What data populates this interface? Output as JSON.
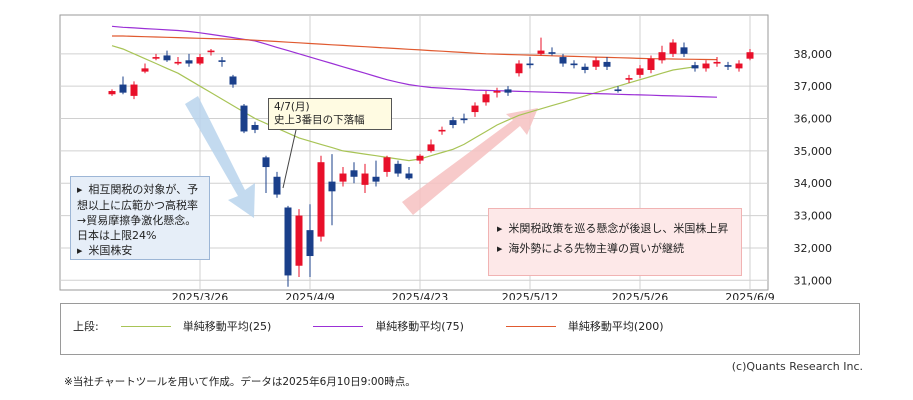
{
  "chart_data": {
    "type": "candlestick",
    "y_ticks": [
      "38,000",
      "37,000",
      "36,000",
      "35,000",
      "34,000",
      "33,000",
      "32,000",
      "31,000"
    ],
    "y_tick_values": [
      38000,
      37000,
      36000,
      35000,
      34000,
      33000,
      32000,
      31000
    ],
    "ylim": [
      30700,
      39200
    ],
    "x_labels": [
      "2025/3/26",
      "2025/4/9",
      "2025/4/23",
      "2025/5/12",
      "2025/5/26",
      "2025/6/9"
    ],
    "x_label_index": [
      8,
      18,
      28,
      38,
      48,
      58
    ],
    "n_days": 60,
    "grid": true,
    "colors": {
      "up": "#e8102a",
      "down": "#1a3f8a",
      "ma25": "#a8c456",
      "ma75": "#9b30d6",
      "ma200": "#e05a30"
    },
    "candles": [
      {
        "o": 36750,
        "c": 36850,
        "h": 36900,
        "l": 36700
      },
      {
        "o": 37050,
        "c": 36800,
        "h": 37300,
        "l": 36750
      },
      {
        "o": 36700,
        "c": 37050,
        "h": 37150,
        "l": 36600
      },
      {
        "o": 37450,
        "c": 37550,
        "h": 37700,
        "l": 37400
      },
      {
        "o": 37850,
        "c": 37900,
        "h": 38000,
        "l": 37800
      },
      {
        "o": 37950,
        "c": 37800,
        "h": 38100,
        "l": 37750
      },
      {
        "o": 37700,
        "c": 37750,
        "h": 37900,
        "l": 37650
      },
      {
        "o": 37800,
        "c": 37700,
        "h": 38000,
        "l": 37600
      },
      {
        "o": 37700,
        "c": 37900,
        "h": 38000,
        "l": 37650
      },
      {
        "o": 38050,
        "c": 38100,
        "h": 38150,
        "l": 37950
      },
      {
        "o": 37800,
        "c": 37750,
        "h": 37900,
        "l": 37600
      },
      {
        "o": 37300,
        "c": 37050,
        "h": 37350,
        "l": 36950
      },
      {
        "o": 36400,
        "c": 35600,
        "h": 36450,
        "l": 35550
      },
      {
        "o": 35800,
        "c": 35650,
        "h": 35900,
        "l": 35550
      },
      {
        "o": 34800,
        "c": 34500,
        "h": 34850,
        "l": 33700
      },
      {
        "o": 34200,
        "c": 33650,
        "h": 34350,
        "l": 33550
      },
      {
        "o": 33250,
        "c": 31150,
        "h": 33300,
        "l": 30800
      },
      {
        "o": 31450,
        "c": 33000,
        "h": 33200,
        "l": 31100
      },
      {
        "o": 32550,
        "c": 31750,
        "h": 33350,
        "l": 31100
      },
      {
        "o": 32350,
        "c": 34650,
        "h": 34850,
        "l": 32200
      },
      {
        "o": 34050,
        "c": 33750,
        "h": 34900,
        "l": 32700
      },
      {
        "o": 34050,
        "c": 34300,
        "h": 34500,
        "l": 33900
      },
      {
        "o": 34400,
        "c": 34200,
        "h": 34650,
        "l": 34000
      },
      {
        "o": 33950,
        "c": 34300,
        "h": 34600,
        "l": 33700
      },
      {
        "o": 34200,
        "c": 34050,
        "h": 34700,
        "l": 33900
      },
      {
        "o": 34350,
        "c": 34800,
        "h": 34850,
        "l": 34200
      },
      {
        "o": 34600,
        "c": 34300,
        "h": 34700,
        "l": 34200
      },
      {
        "o": 34300,
        "c": 34150,
        "h": 34500,
        "l": 34100
      },
      {
        "o": 34700,
        "c": 34850,
        "h": 34900,
        "l": 34600
      },
      {
        "o": 35000,
        "c": 35200,
        "h": 35350,
        "l": 34950
      },
      {
        "o": 35600,
        "c": 35650,
        "h": 35750,
        "l": 35500
      },
      {
        "o": 35950,
        "c": 35800,
        "h": 36050,
        "l": 35700
      },
      {
        "o": 36000,
        "c": 35950,
        "h": 36150,
        "l": 35850
      },
      {
        "o": 36200,
        "c": 36400,
        "h": 36500,
        "l": 36050
      },
      {
        "o": 36500,
        "c": 36750,
        "h": 36850,
        "l": 36400
      },
      {
        "o": 36800,
        "c": 36850,
        "h": 36950,
        "l": 36650
      },
      {
        "o": 36900,
        "c": 36800,
        "h": 37000,
        "l": 36700
      },
      {
        "o": 37400,
        "c": 37700,
        "h": 37800,
        "l": 37300
      },
      {
        "o": 37700,
        "c": 37650,
        "h": 37900,
        "l": 37550
      },
      {
        "o": 38000,
        "c": 38100,
        "h": 38500,
        "l": 37950
      },
      {
        "o": 38050,
        "c": 38000,
        "h": 38200,
        "l": 37950
      },
      {
        "o": 37900,
        "c": 37700,
        "h": 38000,
        "l": 37600
      },
      {
        "o": 37700,
        "c": 37650,
        "h": 37800,
        "l": 37550
      },
      {
        "o": 37600,
        "c": 37500,
        "h": 37700,
        "l": 37400
      },
      {
        "o": 37600,
        "c": 37800,
        "h": 37900,
        "l": 37500
      },
      {
        "o": 37750,
        "c": 37600,
        "h": 37900,
        "l": 37500
      },
      {
        "o": 36900,
        "c": 36850,
        "h": 37000,
        "l": 36800
      },
      {
        "o": 37200,
        "c": 37250,
        "h": 37350,
        "l": 37100
      },
      {
        "o": 37350,
        "c": 37550,
        "h": 37650,
        "l": 37250
      },
      {
        "o": 37500,
        "c": 37850,
        "h": 37950,
        "l": 37400
      },
      {
        "o": 37800,
        "c": 38050,
        "h": 38250,
        "l": 37700
      },
      {
        "o": 38000,
        "c": 38350,
        "h": 38450,
        "l": 37900
      },
      {
        "o": 38200,
        "c": 38000,
        "h": 38350,
        "l": 37900
      },
      {
        "o": 37650,
        "c": 37550,
        "h": 37750,
        "l": 37450
      },
      {
        "o": 37550,
        "c": 37700,
        "h": 37800,
        "l": 37450
      },
      {
        "o": 37700,
        "c": 37750,
        "h": 37900,
        "l": 37600
      },
      {
        "o": 37650,
        "c": 37600,
        "h": 37750,
        "l": 37500
      },
      {
        "o": 37550,
        "c": 37700,
        "h": 37800,
        "l": 37450
      },
      {
        "o": 37850,
        "c": 38050,
        "h": 38150,
        "l": 37800
      }
    ],
    "series": [
      {
        "name": "単純移動平均(25)",
        "values": [
          38250,
          38150,
          38000,
          37850,
          37700,
          37550,
          37400,
          37200,
          37000,
          36800,
          36600,
          36400,
          36200,
          36000,
          35850,
          35700,
          35550,
          35400,
          35300,
          35200,
          35100,
          35000,
          34950,
          34900,
          34850,
          34800,
          34750,
          34700,
          34750,
          34850,
          34950,
          35050,
          35200,
          35400,
          35600,
          35800,
          35950,
          36100,
          36200,
          36300,
          36400,
          36500,
          36600,
          36700,
          36800,
          36900,
          37000,
          37100,
          37200,
          37300,
          37400,
          37500,
          37550,
          37600
        ]
      },
      {
        "name": "単純移動平均(75)",
        "values": [
          38850,
          38820,
          38800,
          38780,
          38760,
          38740,
          38720,
          38690,
          38650,
          38600,
          38550,
          38500,
          38450,
          38400,
          38300,
          38200,
          38100,
          38000,
          37900,
          37800,
          37700,
          37600,
          37500,
          37400,
          37300,
          37200,
          37120,
          37050,
          37000,
          36960,
          36940,
          36920,
          36900,
          36880,
          36870,
          36860,
          36850,
          36840,
          36830,
          36820,
          36810,
          36800,
          36790,
          36780,
          36770,
          36760,
          36750,
          36740,
          36730,
          36720,
          36710,
          36700,
          36690,
          36680,
          36670,
          36660
        ]
      },
      {
        "name": "単純移動平均(200)",
        "values": [
          38550,
          38550,
          38540,
          38530,
          38520,
          38510,
          38500,
          38490,
          38480,
          38470,
          38460,
          38450,
          38440,
          38420,
          38400,
          38380,
          38360,
          38340,
          38320,
          38300,
          38280,
          38260,
          38240,
          38220,
          38200,
          38180,
          38160,
          38140,
          38120,
          38100,
          38080,
          38060,
          38040,
          38020,
          38000,
          37990,
          37980,
          37970,
          37960,
          37950,
          37940,
          37930,
          37920,
          37910,
          37900,
          37890,
          37880,
          37870,
          37860,
          37850,
          37845,
          37840,
          37835,
          37830,
          37825,
          37820
        ]
      }
    ]
  },
  "legend": {
    "prefix": "上段:",
    "items": [
      {
        "label": "単純移動平均(25)",
        "color": "#a8c456"
      },
      {
        "label": "単純移動平均(75)",
        "color": "#9b30d6"
      },
      {
        "label": "単純移動平均(200)",
        "color": "#e05a30"
      }
    ]
  },
  "annotations": {
    "left": [
      "相互関税の対象が、予想以上に広範かつ高税率→貿易摩擦争激化懸念。日本は上限24%",
      "米国株安"
    ],
    "right": [
      "米関税政策を巡る懸念が後退し、米国株上昇",
      "海外勢による先物主導の買いが継続"
    ],
    "date_box": {
      "date": "4/7(月)",
      "text": "史上3番目の下落幅"
    }
  },
  "copyright": "(c)Quants Research Inc.",
  "note": "※当社チャートツールを用いて作成。データは2025年6月10日9:00時点。"
}
